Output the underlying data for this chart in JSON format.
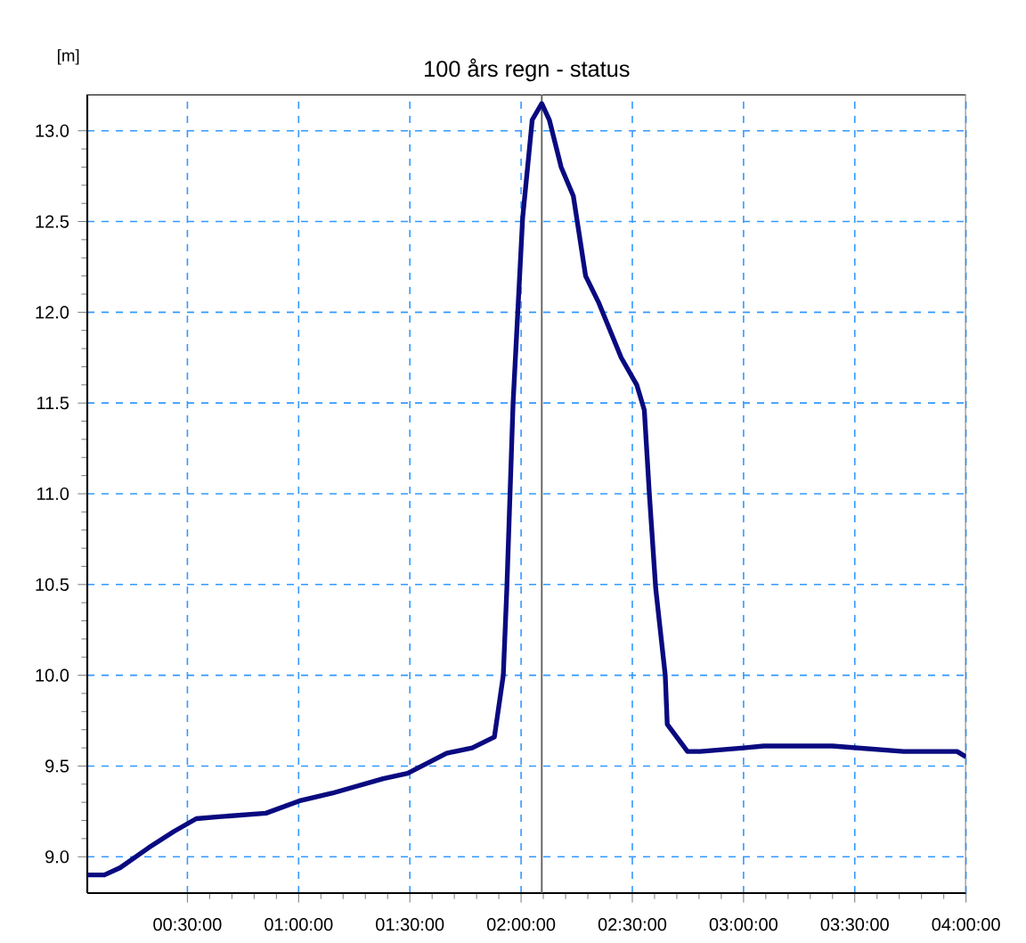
{
  "chart_data": {
    "type": "line",
    "title": "100 års regn - status",
    "ylabel": "[m]",
    "x": [
      0.05,
      0.127,
      0.198,
      0.326,
      0.44,
      0.54,
      0.64,
      0.853,
      1.01,
      1.15,
      1.38,
      1.49,
      1.665,
      1.78,
      1.88,
      1.92,
      1.936,
      1.964,
      2.007,
      2.05,
      2.093,
      2.127,
      2.18,
      2.235,
      2.29,
      2.35,
      2.45,
      2.52,
      2.554,
      2.577,
      2.605,
      2.648,
      2.657,
      2.748,
      2.805,
      3.0,
      3.09,
      3.4,
      3.72,
      3.96,
      4.0
    ],
    "series": [
      {
        "color": "#0a0a80",
        "values": [
          8.9,
          8.9,
          8.94,
          9.05,
          9.14,
          9.21,
          9.22,
          9.24,
          9.31,
          9.35,
          9.43,
          9.46,
          9.57,
          9.6,
          9.66,
          10.0,
          10.48,
          11.5,
          12.52,
          13.06,
          13.15,
          13.06,
          12.8,
          12.64,
          12.2,
          12.05,
          11.75,
          11.6,
          11.46,
          10.99,
          10.48,
          10.0,
          9.73,
          9.58,
          9.58,
          9.6,
          9.61,
          9.61,
          9.58,
          9.58,
          9.55
        ]
      }
    ],
    "xlim": [
      0.05,
      4.0
    ],
    "ylim": [
      8.8,
      13.2
    ],
    "xticks": [
      {
        "value": 0.5,
        "label": "00:30:00"
      },
      {
        "value": 1.0,
        "label": "01:00:00"
      },
      {
        "value": 1.5,
        "label": "01:30:00"
      },
      {
        "value": 2.0,
        "label": "02:00:00"
      },
      {
        "value": 2.5,
        "label": "02:30:00"
      },
      {
        "value": 3.0,
        "label": "03:00:00"
      },
      {
        "value": 3.5,
        "label": "03:30:00"
      },
      {
        "value": 4.0,
        "label": "04:00:00"
      }
    ],
    "yticks": [
      {
        "value": 9.0,
        "label": "9.0"
      },
      {
        "value": 9.5,
        "label": "9.5"
      },
      {
        "value": 10.0,
        "label": "10.0"
      },
      {
        "value": 10.5,
        "label": "10.5"
      },
      {
        "value": 11.0,
        "label": "11.0"
      },
      {
        "value": 11.5,
        "label": "11.5"
      },
      {
        "value": 12.0,
        "label": "12.0"
      },
      {
        "value": 12.5,
        "label": "12.5"
      },
      {
        "value": 13.0,
        "label": "13.0"
      }
    ],
    "ref_lines": [
      {
        "axis": "x",
        "value": 2.093,
        "color": "#606060"
      }
    ],
    "grid": true,
    "line_style": "solid"
  }
}
